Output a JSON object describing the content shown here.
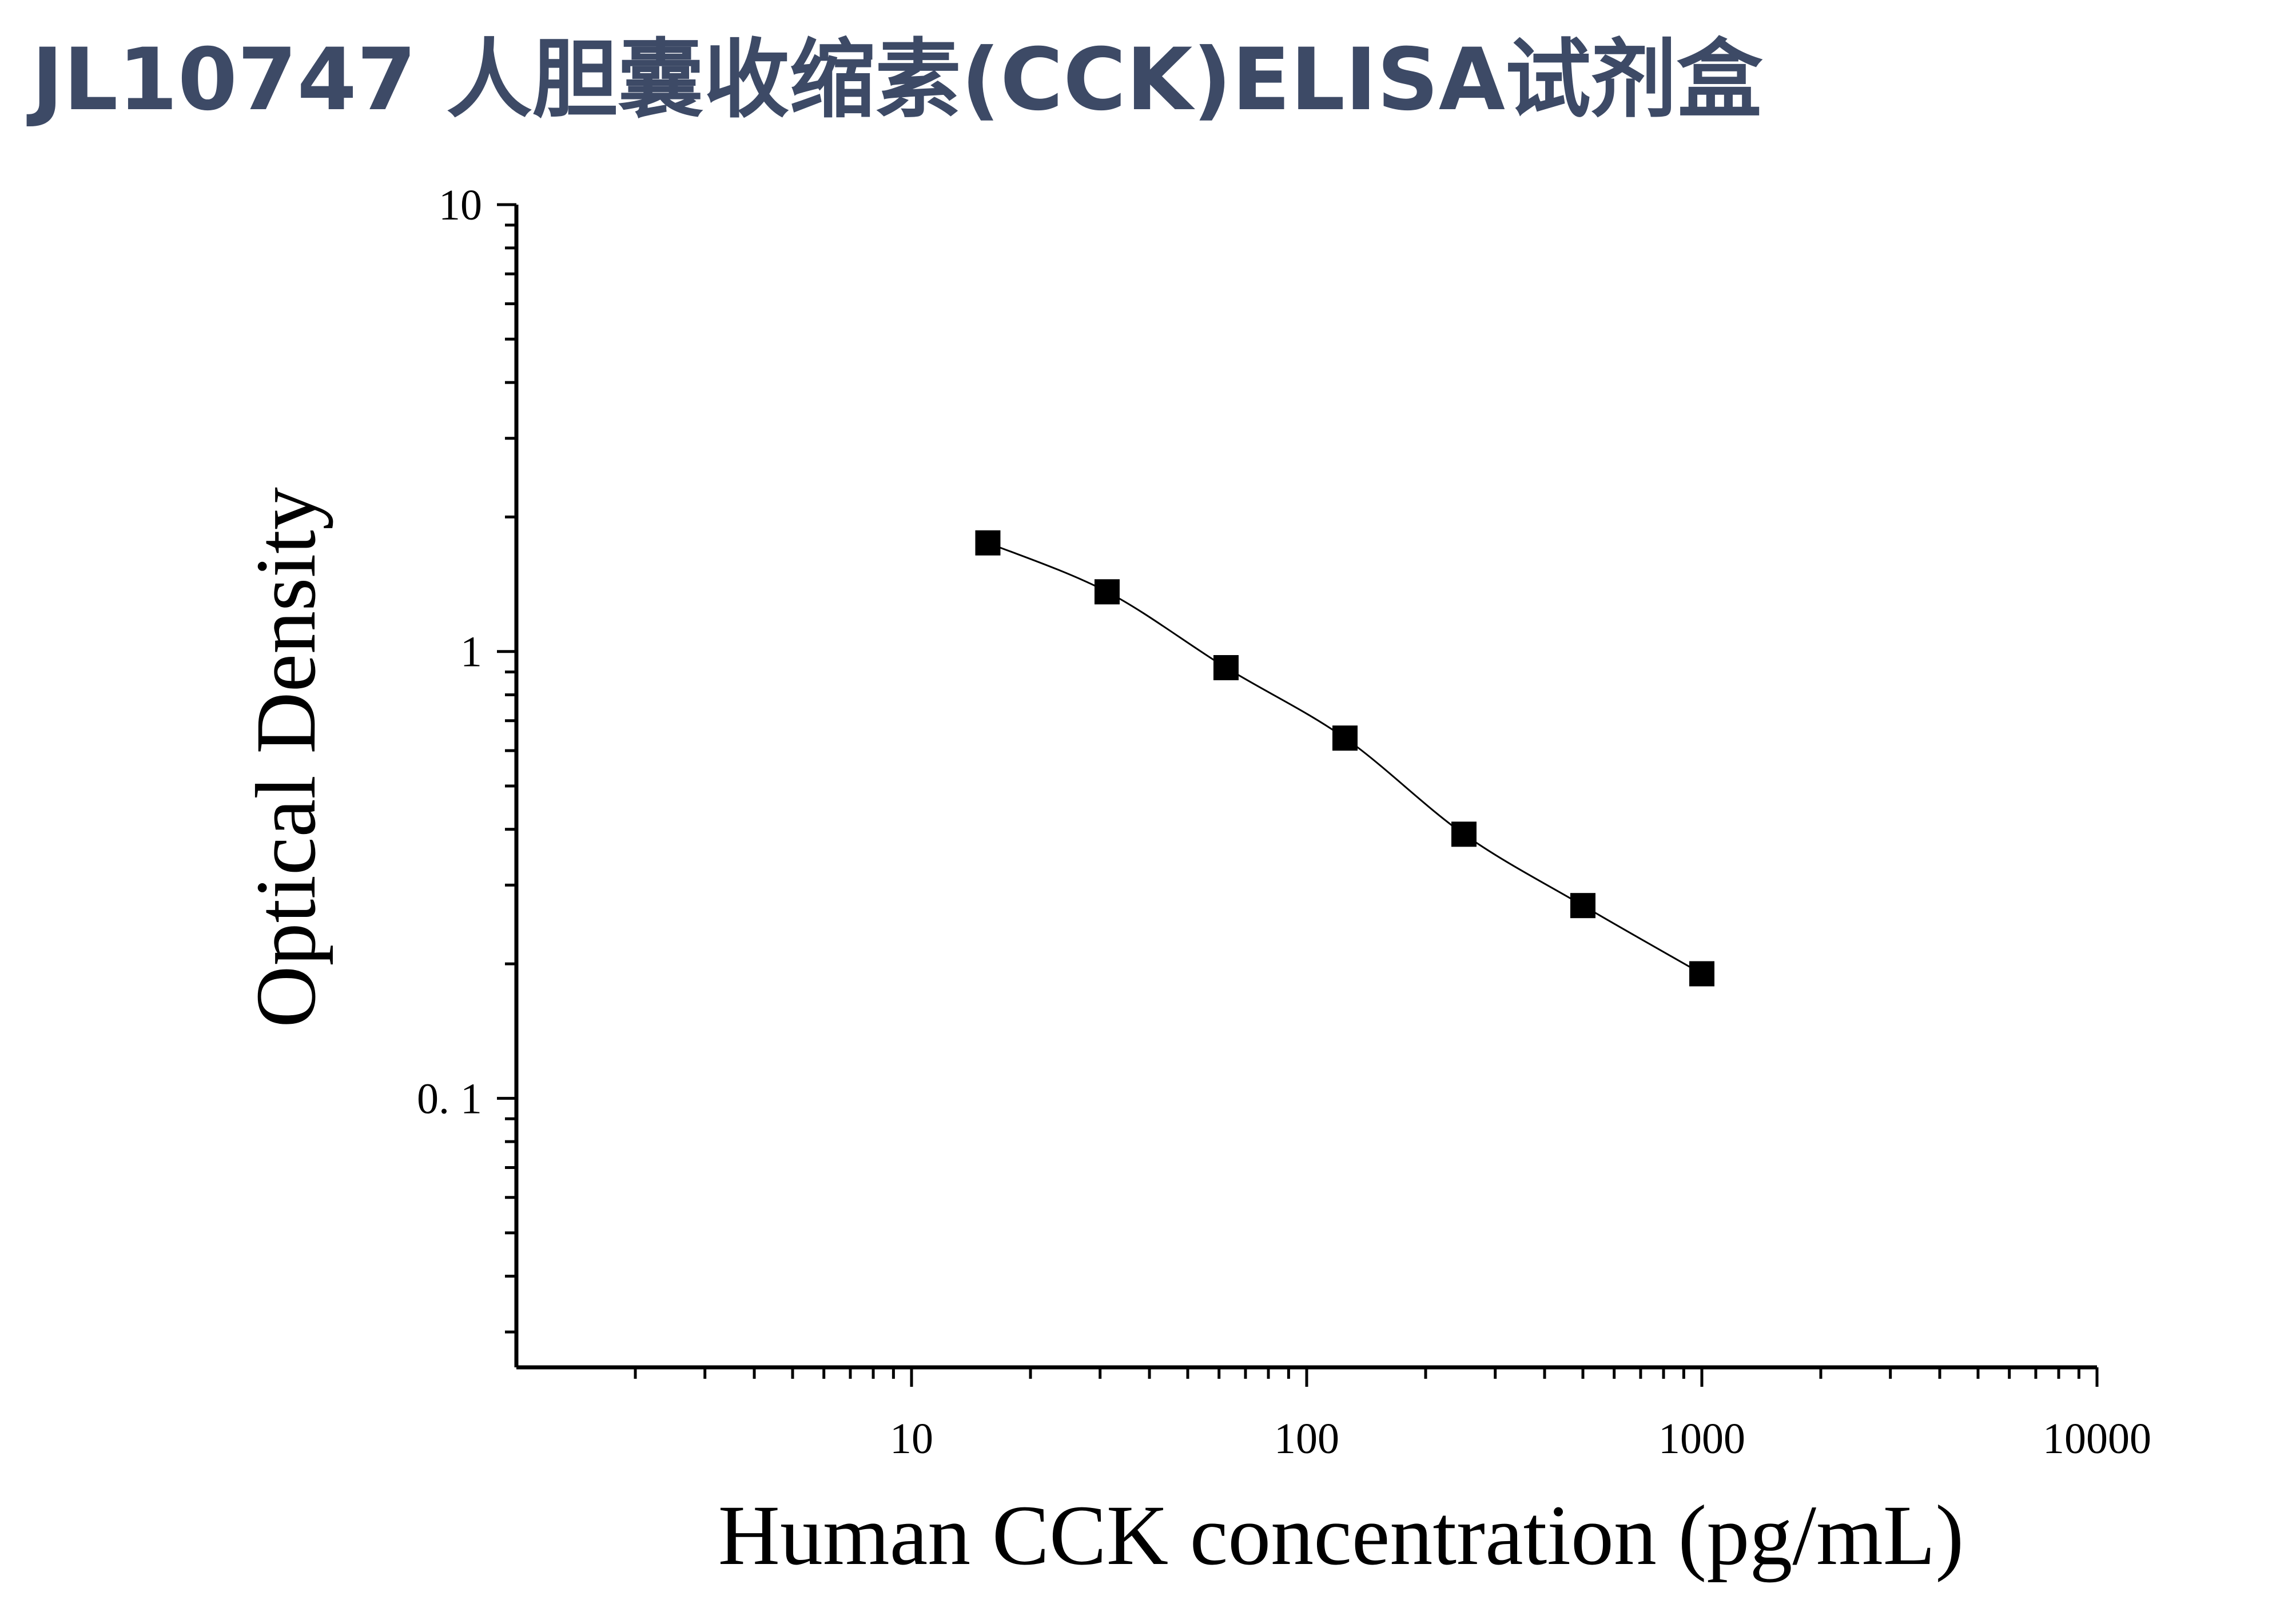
{
  "title": "JL10747 人胆囊收缩素(CCK)ELISA试剂盒",
  "chart_data": {
    "type": "scatter",
    "title": "JL10747 人胆囊收缩素(CCK)ELISA试剂盒",
    "xlabel": "Human CCK concentration (pg/mL)",
    "ylabel": "Optical Density",
    "x_scale": "log",
    "y_scale": "log",
    "xlim": [
      1,
      10000
    ],
    "ylim": [
      0.025,
      10
    ],
    "x_ticks": [
      {
        "value": 10,
        "label": "10"
      },
      {
        "value": 100,
        "label": "100"
      },
      {
        "value": 1000,
        "label": "1000"
      },
      {
        "value": 10000,
        "label": "10000"
      }
    ],
    "y_ticks": [
      {
        "value": 0.1,
        "label": "0. 1"
      },
      {
        "value": 1,
        "label": "1"
      },
      {
        "value": 10,
        "label": "10"
      }
    ],
    "grid": false,
    "legend": "none",
    "fit_line": true,
    "series": [
      {
        "x": [
          15.6,
          31.25,
          62.5,
          125,
          250,
          500,
          1000
        ],
        "y": [
          1.75,
          1.36,
          0.92,
          0.64,
          0.39,
          0.27,
          0.19
        ]
      }
    ]
  }
}
